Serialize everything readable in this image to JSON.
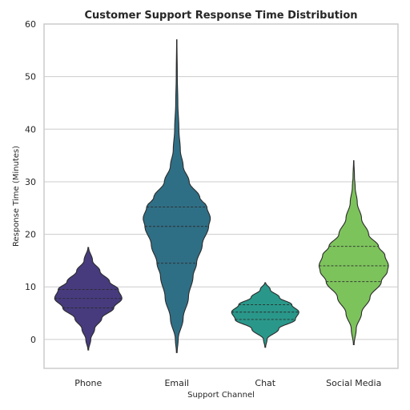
{
  "chart_data": {
    "type": "violin",
    "title": "Customer Support Response Time Distribution",
    "xlabel": "Support Channel",
    "ylabel": "Response Time (Minutes)",
    "ylim": [
      -5.5,
      60
    ],
    "yticks": [
      0,
      10,
      20,
      30,
      40,
      50,
      60
    ],
    "grid": true,
    "categories": [
      "Phone",
      "Email",
      "Chat",
      "Social Media"
    ],
    "series": [
      {
        "category": "Phone",
        "color": "#473b7e",
        "min": -2,
        "max": 17.5,
        "quartiles": [
          6,
          7.8,
          9.5
        ],
        "profile": [
          [
            -2,
            0.01
          ],
          [
            0,
            0.07
          ],
          [
            2,
            0.18
          ],
          [
            4,
            0.38
          ],
          [
            6,
            0.72
          ],
          [
            7.8,
            0.95
          ],
          [
            9.5,
            0.85
          ],
          [
            11,
            0.6
          ],
          [
            13,
            0.33
          ],
          [
            15,
            0.12
          ],
          [
            17.5,
            0.01
          ]
        ]
      },
      {
        "category": "Email",
        "color": "#2f6f86",
        "min": -2.5,
        "max": 57,
        "quartiles": [
          14.5,
          21.5,
          25.2
        ],
        "profile": [
          [
            -2.5,
            0.01
          ],
          [
            0,
            0.04
          ],
          [
            4,
            0.18
          ],
          [
            8,
            0.33
          ],
          [
            12,
            0.46
          ],
          [
            14.5,
            0.56
          ],
          [
            18,
            0.72
          ],
          [
            21.5,
            0.9
          ],
          [
            23,
            0.95
          ],
          [
            25.2,
            0.85
          ],
          [
            27,
            0.65
          ],
          [
            30,
            0.35
          ],
          [
            33,
            0.18
          ],
          [
            36,
            0.1
          ],
          [
            40,
            0.06
          ],
          [
            45,
            0.03
          ],
          [
            50,
            0.015
          ],
          [
            57,
            0.005
          ]
        ]
      },
      {
        "category": "Chat",
        "color": "#29988a",
        "min": -1.5,
        "max": 10.8,
        "quartiles": [
          3.8,
          5.2,
          6.6
        ],
        "profile": [
          [
            -1.5,
            0.01
          ],
          [
            0,
            0.05
          ],
          [
            2,
            0.38
          ],
          [
            3.8,
            0.85
          ],
          [
            5.2,
            0.95
          ],
          [
            6.6,
            0.75
          ],
          [
            8,
            0.4
          ],
          [
            9.5,
            0.14
          ],
          [
            10.8,
            0.01
          ]
        ]
      },
      {
        "category": "Social Media",
        "color": "#7dc35c",
        "min": -1,
        "max": 34,
        "quartiles": [
          11,
          14,
          17.7
        ],
        "profile": [
          [
            -1,
            0.01
          ],
          [
            2,
            0.07
          ],
          [
            5,
            0.22
          ],
          [
            8,
            0.46
          ],
          [
            11,
            0.78
          ],
          [
            13,
            0.95
          ],
          [
            14,
            0.98
          ],
          [
            16,
            0.88
          ],
          [
            17.7,
            0.7
          ],
          [
            20,
            0.42
          ],
          [
            23,
            0.22
          ],
          [
            26,
            0.1
          ],
          [
            29,
            0.04
          ],
          [
            31,
            0.02
          ],
          [
            34,
            0.005
          ]
        ]
      }
    ]
  }
}
